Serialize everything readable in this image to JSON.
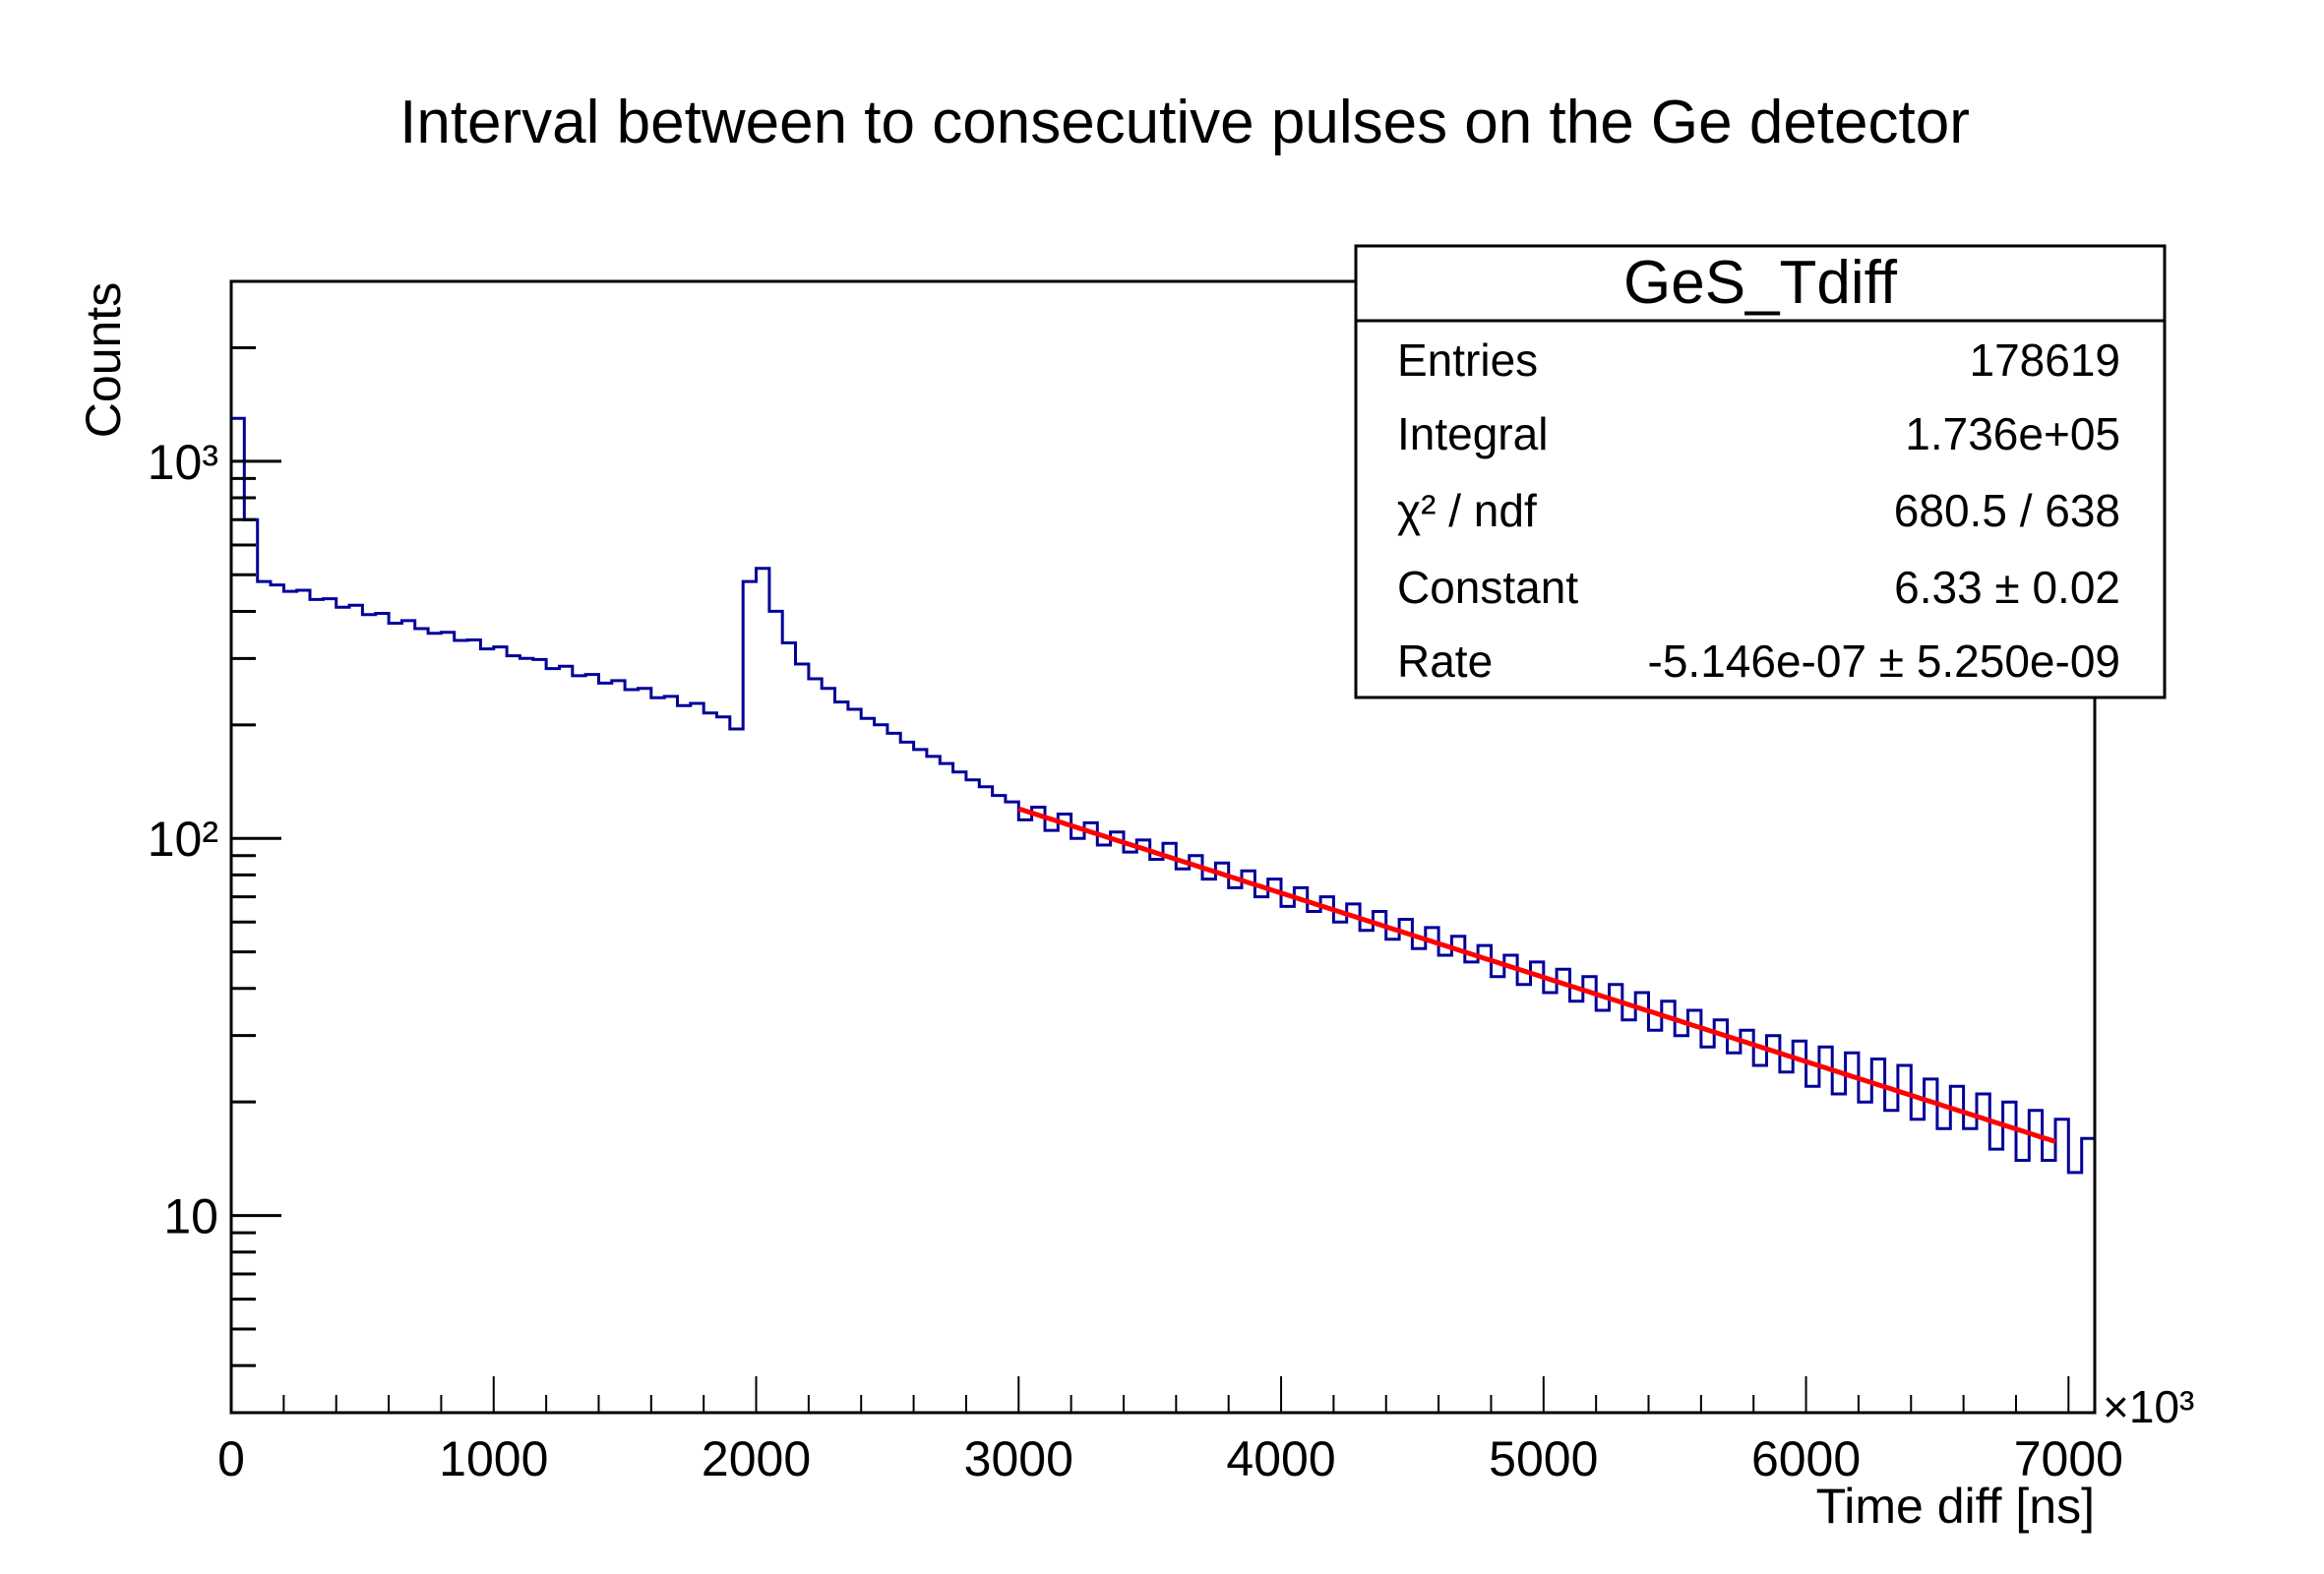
{
  "chart_data": {
    "type": "bar",
    "histogram_style": "step",
    "title": "Interval between to consecutive pulses on the Ge detector",
    "xlabel": "Time diff [ns]",
    "ylabel": "Counts",
    "x_multiplier_label": "×10³",
    "xlim": [
      0,
      7100
    ],
    "ylim": [
      3,
      3000
    ],
    "y_scale": "log",
    "grid": false,
    "x_ticks": [
      {
        "value": 0,
        "label": "0"
      },
      {
        "value": 1000,
        "label": "1000"
      },
      {
        "value": 2000,
        "label": "2000"
      },
      {
        "value": 3000,
        "label": "3000"
      },
      {
        "value": 4000,
        "label": "4000"
      },
      {
        "value": 5000,
        "label": "5000"
      },
      {
        "value": 6000,
        "label": "6000"
      },
      {
        "value": 7000,
        "label": "7000"
      }
    ],
    "y_ticks": [
      {
        "value": 10,
        "label": "10"
      },
      {
        "value": 100,
        "label": "10²"
      },
      {
        "value": 1000,
        "label": "10³"
      }
    ],
    "bin_width": 50,
    "bin_start": 0,
    "values": [
      1300,
      700,
      480,
      470,
      452,
      455,
      430,
      432,
      410,
      415,
      392,
      395,
      372,
      378,
      360,
      350,
      352,
      335,
      336,
      318,
      322,
      305,
      300,
      298,
      282,
      286,
      270,
      272,
      258,
      262,
      248,
      250,
      236,
      238,
      225,
      228,
      215,
      210,
      195,
      480,
      520,
      400,
      330,
      290,
      265,
      250,
      230,
      220,
      208,
      200,
      190,
      180,
      172,
      165,
      158,
      150,
      143,
      137,
      130,
      125,
      112,
      121,
      105,
      116,
      100,
      110,
      96,
      104,
      92,
      99,
      88,
      97,
      83,
      90,
      78,
      86,
      74,
      82,
      70,
      78,
      66,
      74,
      64,
      70,
      60,
      67,
      57,
      64,
      54,
      61,
      51,
      58,
      49,
      55,
      47,
      52,
      43,
      49,
      41,
      47,
      39,
      45,
      37,
      43,
      35,
      41,
      33,
      39,
      31,
      37,
      30,
      35,
      28,
      33,
      27,
      31,
      25,
      30,
      24,
      29,
      22,
      28,
      21,
      27,
      20,
      26,
      19,
      25,
      18,
      23,
      17,
      22,
      17,
      21,
      15,
      20,
      14,
      19,
      14,
      18,
      13,
      16
    ],
    "series_color": "#000099",
    "fit": {
      "function": "expo",
      "color": "#ff0000",
      "range": [
        3000,
        6950
      ],
      "constant": 6.33,
      "rate_per_ns": -5.146e-07,
      "x_unit_ns": 1000
    },
    "stats_box": {
      "title": "GeS_Tdiff",
      "placement": "top-right",
      "rows": [
        {
          "label": "Entries",
          "value": "178619"
        },
        {
          "label": "Integral",
          "value": "1.736e+05"
        },
        {
          "label": "χ² / ndf",
          "value": "680.5 / 638"
        },
        {
          "label": "Constant",
          "value": "6.33 ± 0.02"
        },
        {
          "label": "Rate",
          "value": "-5.146e-07 ± 5.250e-09"
        }
      ]
    }
  }
}
